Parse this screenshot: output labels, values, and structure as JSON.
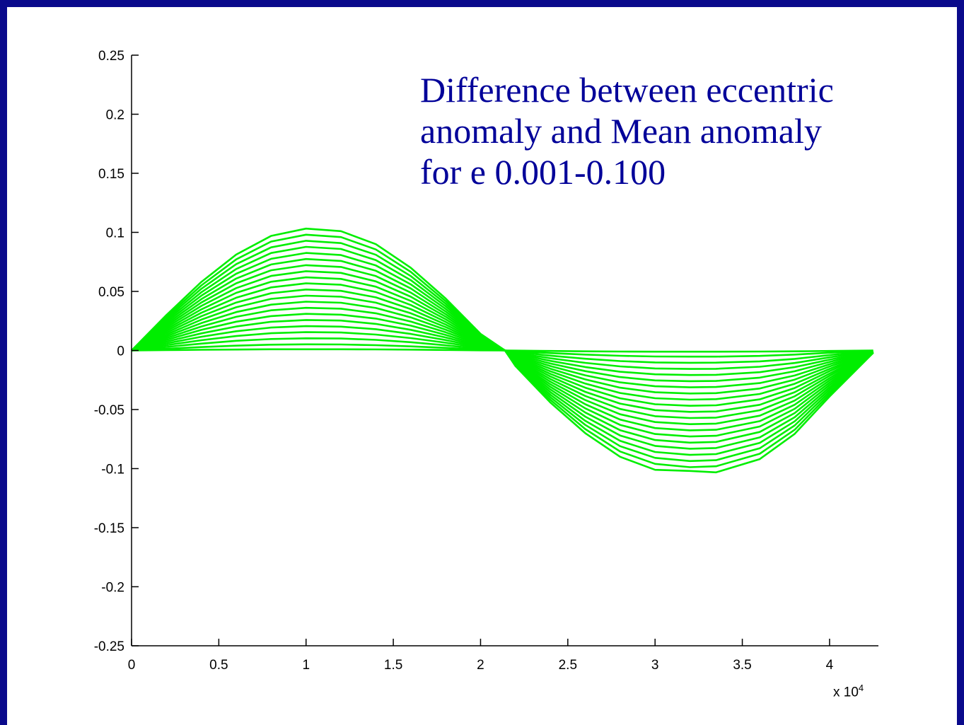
{
  "chart_data": {
    "type": "line",
    "annotation_lines": [
      "Difference between eccentric",
      "anomaly and Mean anomaly",
      "for e 0.001-0.100"
    ],
    "x_multiplier": {
      "base": "x 10",
      "exponent": "4"
    },
    "xlim": [
      0,
      42800
    ],
    "ylim": [
      -0.25,
      0.25
    ],
    "x_ticks": [
      {
        "value": 0,
        "label": "0"
      },
      {
        "value": 5000,
        "label": "0.5"
      },
      {
        "value": 10000,
        "label": "1"
      },
      {
        "value": 15000,
        "label": "1.5"
      },
      {
        "value": 20000,
        "label": "2"
      },
      {
        "value": 25000,
        "label": "2.5"
      },
      {
        "value": 30000,
        "label": "3"
      },
      {
        "value": 35000,
        "label": "3.5"
      },
      {
        "value": 40000,
        "label": "4"
      }
    ],
    "y_ticks": [
      {
        "value": 0.25,
        "label": "0.25"
      },
      {
        "value": 0.2,
        "label": "0.2"
      },
      {
        "value": 0.15,
        "label": "0.15"
      },
      {
        "value": 0.1,
        "label": "0.1"
      },
      {
        "value": 0.05,
        "label": "0.05"
      },
      {
        "value": 0,
        "label": "0"
      },
      {
        "value": -0.05,
        "label": "-0.05"
      },
      {
        "value": -0.1,
        "label": "-0.1"
      },
      {
        "value": -0.15,
        "label": "-0.15"
      },
      {
        "value": -0.2,
        "label": "-0.2"
      },
      {
        "value": -0.25,
        "label": "-0.25"
      }
    ],
    "grid": false,
    "line_color": "#00ee00",
    "axis_color": "#000000",
    "x": [
      0,
      2000,
      4000,
      6000,
      8000,
      10000,
      12000,
      14000,
      16000,
      18000,
      20000,
      21400,
      22000,
      24000,
      26000,
      28000,
      30000,
      32000,
      33500,
      36000,
      38000,
      40000,
      42500
    ],
    "series": [
      {
        "values": [
          0,
          0.0003,
          0.0006,
          0.0008,
          0.001,
          0.001,
          0.001,
          0.0009,
          0.0007,
          0.0004,
          0.0001,
          0,
          -0.0001,
          -0.0004,
          -0.0007,
          -0.0009,
          -0.001,
          -0.001,
          -0.001,
          -0.0009,
          -0.0007,
          -0.0004,
          0
        ]
      },
      {
        "values": [
          0,
          0.0015,
          0.0029,
          0.0041,
          0.0049,
          0.0052,
          0.0051,
          0.0045,
          0.0035,
          0.0022,
          0.0007,
          0,
          -0.0007,
          -0.0022,
          -0.0035,
          -0.0045,
          -0.0051,
          -0.0052,
          -0.0052,
          -0.0046,
          -0.0035,
          -0.0019,
          -0.0001
        ]
      },
      {
        "values": [
          0,
          0.003,
          0.0058,
          0.0082,
          0.0097,
          0.0103,
          0.0101,
          0.009,
          0.007,
          0.0044,
          0.0014,
          0,
          -0.0013,
          -0.0044,
          -0.007,
          -0.009,
          -0.0101,
          -0.0104,
          -0.0103,
          -0.0092,
          -0.0071,
          -0.0039,
          -0.0002
        ]
      },
      {
        "values": [
          0,
          0.0045,
          0.0087,
          0.0122,
          0.0146,
          0.0155,
          0.0152,
          0.0135,
          0.0105,
          0.0066,
          0.0021,
          0,
          -0.002,
          -0.0066,
          -0.0105,
          -0.0135,
          -0.0152,
          -0.0156,
          -0.0155,
          -0.0138,
          -0.0106,
          -0.0058,
          -0.0003
        ]
      },
      {
        "values": [
          0,
          0.006,
          0.0116,
          0.0163,
          0.0194,
          0.0206,
          0.0202,
          0.018,
          0.014,
          0.0088,
          0.0028,
          0,
          -0.0026,
          -0.0088,
          -0.014,
          -0.018,
          -0.0202,
          -0.0208,
          -0.0206,
          -0.0184,
          -0.0141,
          -0.0078,
          -0.0004
        ]
      },
      {
        "values": [
          0,
          0.0075,
          0.0145,
          0.0203,
          0.0243,
          0.0258,
          0.0253,
          0.0225,
          0.0175,
          0.011,
          0.0035,
          0,
          -0.0033,
          -0.011,
          -0.0175,
          -0.0225,
          -0.0253,
          -0.026,
          -0.0258,
          -0.023,
          -0.0176,
          -0.0097,
          -0.0005
        ]
      },
      {
        "values": [
          0,
          0.009,
          0.0174,
          0.0244,
          0.0291,
          0.031,
          0.0303,
          0.027,
          0.021,
          0.0132,
          0.0042,
          0,
          -0.004,
          -0.0132,
          -0.021,
          -0.027,
          -0.0303,
          -0.0312,
          -0.0309,
          -0.0276,
          -0.0212,
          -0.0117,
          -0.0006
        ]
      },
      {
        "values": [
          0,
          0.0105,
          0.0203,
          0.0285,
          0.034,
          0.0361,
          0.0354,
          0.0315,
          0.0245,
          0.0154,
          0.0049,
          0,
          -0.0046,
          -0.0154,
          -0.0245,
          -0.0315,
          -0.0354,
          -0.0364,
          -0.0361,
          -0.0322,
          -0.0247,
          -0.0136,
          -0.0007
        ]
      },
      {
        "values": [
          0,
          0.012,
          0.0232,
          0.0325,
          0.0388,
          0.0413,
          0.0404,
          0.036,
          0.028,
          0.0176,
          0.0056,
          0,
          -0.0053,
          -0.0176,
          -0.028,
          -0.036,
          -0.0404,
          -0.0416,
          -0.0412,
          -0.0368,
          -0.0282,
          -0.0156,
          -0.0008
        ]
      },
      {
        "values": [
          0,
          0.0135,
          0.0261,
          0.0366,
          0.0437,
          0.0464,
          0.0455,
          0.0405,
          0.0315,
          0.0198,
          0.0063,
          0,
          -0.0059,
          -0.0198,
          -0.0315,
          -0.0405,
          -0.0455,
          -0.0468,
          -0.0464,
          -0.0414,
          -0.0318,
          -0.0175,
          -0.0009
        ]
      },
      {
        "values": [
          0,
          0.015,
          0.029,
          0.0406,
          0.0485,
          0.0516,
          0.0505,
          0.045,
          0.035,
          0.022,
          0.007,
          0,
          -0.0066,
          -0.022,
          -0.035,
          -0.045,
          -0.0505,
          -0.052,
          -0.0516,
          -0.046,
          -0.0353,
          -0.0195,
          -0.001
        ]
      },
      {
        "values": [
          0,
          0.0165,
          0.0319,
          0.0447,
          0.0534,
          0.0568,
          0.0556,
          0.0495,
          0.0385,
          0.0242,
          0.0077,
          0,
          -0.0073,
          -0.0242,
          -0.0385,
          -0.0495,
          -0.0556,
          -0.0572,
          -0.0568,
          -0.0506,
          -0.0388,
          -0.0214,
          -0.0011
        ]
      },
      {
        "values": [
          0,
          0.018,
          0.0348,
          0.0488,
          0.0582,
          0.0619,
          0.0606,
          0.054,
          0.042,
          0.0264,
          0.0084,
          0,
          -0.0079,
          -0.0264,
          -0.042,
          -0.054,
          -0.0606,
          -0.0624,
          -0.0619,
          -0.0552,
          -0.0424,
          -0.0234,
          -0.0012
        ]
      },
      {
        "values": [
          0,
          0.0195,
          0.0377,
          0.0528,
          0.0631,
          0.0671,
          0.0657,
          0.0585,
          0.0455,
          0.0286,
          0.0091,
          0,
          -0.0086,
          -0.0286,
          -0.0455,
          -0.0585,
          -0.0657,
          -0.0676,
          -0.0671,
          -0.0598,
          -0.0459,
          -0.0253,
          -0.0013
        ]
      },
      {
        "values": [
          0,
          0.021,
          0.0406,
          0.0569,
          0.0679,
          0.0722,
          0.0707,
          0.063,
          0.049,
          0.0308,
          0.0098,
          0,
          -0.0092,
          -0.0308,
          -0.049,
          -0.063,
          -0.0707,
          -0.0728,
          -0.0722,
          -0.0644,
          -0.0494,
          -0.0273,
          -0.0014
        ]
      },
      {
        "values": [
          0,
          0.0225,
          0.0435,
          0.0609,
          0.0728,
          0.0774,
          0.0758,
          0.0675,
          0.0525,
          0.033,
          0.0105,
          0,
          -0.0099,
          -0.033,
          -0.0525,
          -0.0675,
          -0.0758,
          -0.078,
          -0.0774,
          -0.069,
          -0.053,
          -0.0292,
          -0.0015
        ]
      },
      {
        "values": [
          0,
          0.024,
          0.0464,
          0.065,
          0.0776,
          0.0826,
          0.0808,
          0.072,
          0.056,
          0.0352,
          0.0112,
          0,
          -0.0106,
          -0.0352,
          -0.056,
          -0.072,
          -0.0808,
          -0.0832,
          -0.0826,
          -0.0736,
          -0.0565,
          -0.0312,
          -0.0016
        ]
      },
      {
        "values": [
          0,
          0.0255,
          0.0493,
          0.069,
          0.0825,
          0.0877,
          0.0859,
          0.0765,
          0.0595,
          0.0374,
          0.0119,
          0,
          -0.0112,
          -0.0374,
          -0.0595,
          -0.0765,
          -0.0859,
          -0.0884,
          -0.0877,
          -0.0782,
          -0.06,
          -0.0331,
          -0.0017
        ]
      },
      {
        "values": [
          0,
          0.027,
          0.0522,
          0.0731,
          0.0873,
          0.0929,
          0.0909,
          0.081,
          0.063,
          0.0396,
          0.0126,
          0,
          -0.0119,
          -0.0396,
          -0.063,
          -0.081,
          -0.0909,
          -0.0936,
          -0.0929,
          -0.0828,
          -0.0635,
          -0.0351,
          -0.0018
        ]
      },
      {
        "values": [
          0,
          0.0285,
          0.0551,
          0.0771,
          0.0922,
          0.098,
          0.096,
          0.0855,
          0.0665,
          0.0418,
          0.0133,
          0,
          -0.0125,
          -0.0418,
          -0.0665,
          -0.0855,
          -0.096,
          -0.0988,
          -0.098,
          -0.0874,
          -0.0671,
          -0.037,
          -0.0019
        ]
      },
      {
        "values": [
          0,
          0.03,
          0.058,
          0.0812,
          0.097,
          0.1032,
          0.101,
          0.09,
          0.07,
          0.044,
          0.014,
          0,
          -0.0132,
          -0.044,
          -0.07,
          -0.09,
          -0.101,
          -0.102,
          -0.1032,
          -0.092,
          -0.0706,
          -0.039,
          -0.002
        ]
      }
    ]
  }
}
